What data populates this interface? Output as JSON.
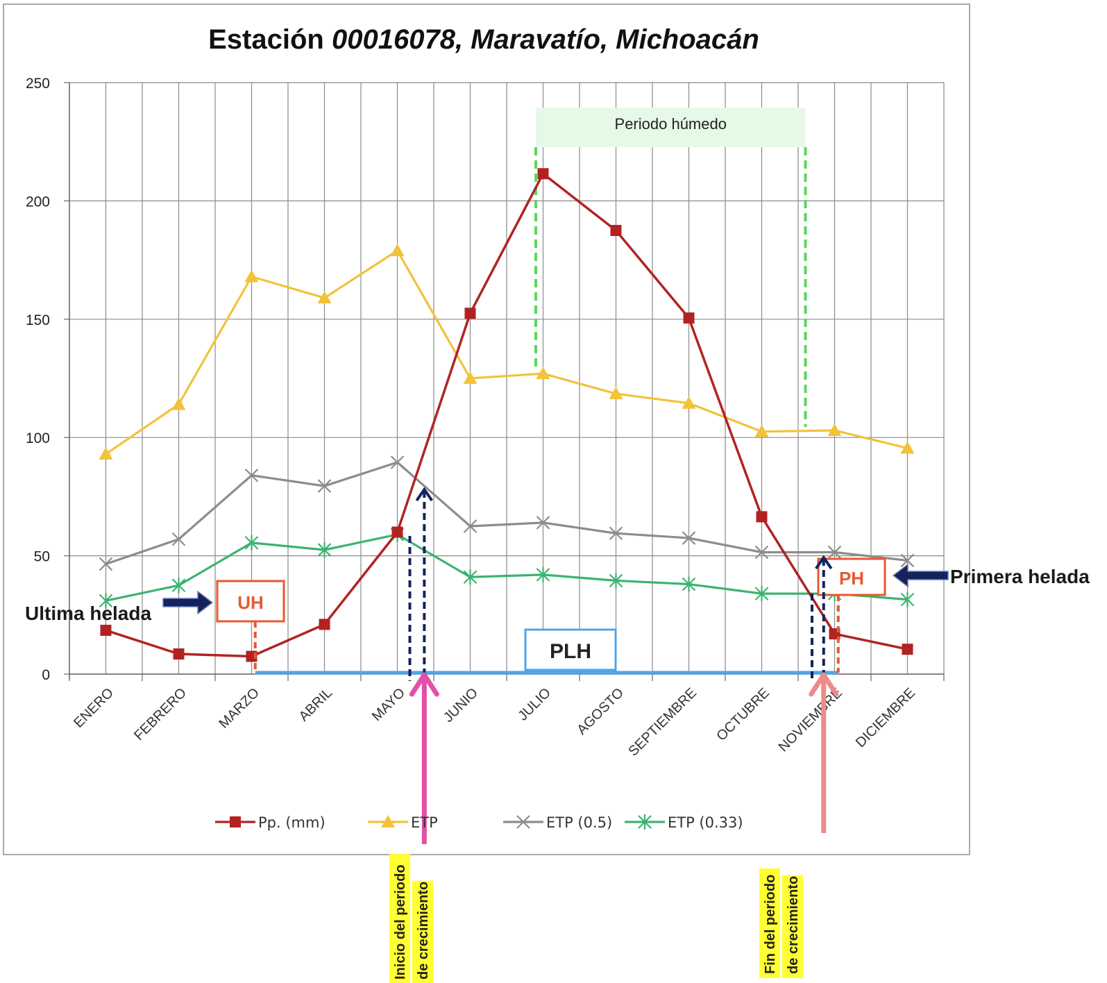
{
  "chart_data": {
    "type": "line",
    "title": "Estación ",
    "title_italic": "00016078, Maravatío, Michoacán",
    "categories": [
      "ENERO",
      "FEBRERO",
      "MARZO",
      "ABRIL",
      "MAYO",
      "JUNIO",
      "JULIO",
      "AGOSTO",
      "SEPTIEMBRE",
      "OCTUBRE",
      "NOVIEMBRE",
      "DICIEMBRE"
    ],
    "yticks": [
      0,
      50,
      100,
      150,
      200,
      250
    ],
    "ylim": [
      0,
      250
    ],
    "grid": true,
    "legend_position": "bottom",
    "series": [
      {
        "name": "Pp. (mm)",
        "color": "#b22222",
        "marker": "square",
        "values": [
          18.5,
          8.5,
          7.5,
          21,
          60,
          152.5,
          211.5,
          187.5,
          150.5,
          66.5,
          17,
          10.5
        ]
      },
      {
        "name": "ETP",
        "color": "#f2c23a",
        "marker": "triangle",
        "values": [
          93,
          114,
          168,
          159,
          179,
          125,
          127,
          118.5,
          114.5,
          102.5,
          103,
          95.5
        ]
      },
      {
        "name": "ETP (0.5)",
        "color": "#8c8c8c",
        "marker": "x",
        "values": [
          46.5,
          57,
          84,
          79.5,
          89.5,
          62.5,
          64,
          59.5,
          57.5,
          51.5,
          51.5,
          48
        ]
      },
      {
        "name": "ETP (0.33)",
        "color": "#3cb371",
        "marker": "star",
        "values": [
          31,
          37.5,
          55.5,
          52.5,
          59,
          41,
          42,
          39.5,
          38,
          34,
          34,
          31.5
        ]
      }
    ],
    "annotations": {
      "wet_period_label": "Periodo húmedo",
      "wet_period_start_month": 5.9,
      "wet_period_end_month": 9.6,
      "last_frost_label": "Ultima helada",
      "last_frost_box": "UH",
      "last_frost_month": 2.05,
      "first_frost_label": "Primera helada",
      "first_frost_box": "PH",
      "first_frost_month": 10.05,
      "frost_free_label": "PLH",
      "growth_start_label_1": "Inicio del periodo",
      "growth_start_label_2": "de crecimiento",
      "growth_start_month": 4.37,
      "growth_end_label_1": "Fin del periodo",
      "growth_end_label_2": "de crecimiento",
      "growth_end_month": 9.85
    }
  },
  "colors": {
    "wet_band": "#e6f8e6",
    "wet_dash": "#5cd65c",
    "navy_dash": "#14235e",
    "orange_box": "#e8582e",
    "plh_line": "#4da6e8",
    "pink_arrow": "#e24fa8",
    "salmon_arrow": "#f08a8a",
    "highlight": "#ffff33"
  }
}
